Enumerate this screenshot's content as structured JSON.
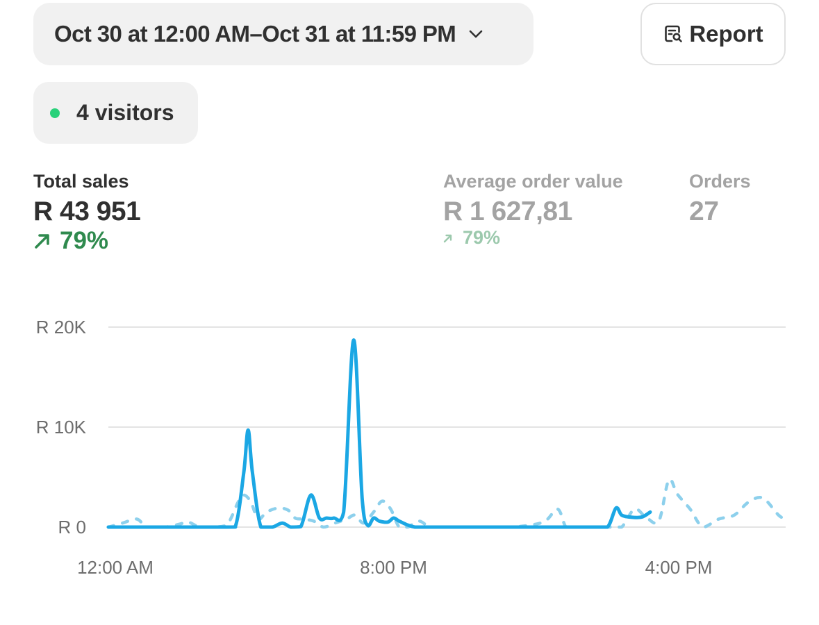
{
  "header": {
    "date_range": "Oct 30 at 12:00 AM–Oct 31 at 11:59 PM",
    "report_label": "Report"
  },
  "visitors": {
    "label": "4 visitors",
    "dot_color": "#29d17a"
  },
  "metrics": {
    "total_sales": {
      "label": "Total sales",
      "value": "R 43 951",
      "change": "79%"
    },
    "avg_order_value": {
      "label": "Average order value",
      "value": "R 1 627,81",
      "change": "79%"
    },
    "orders": {
      "label": "Orders",
      "value": "27"
    }
  },
  "colors": {
    "current_series": "#1ba7e4",
    "comparison_series": "#8dd0ec",
    "positive_change": "#2f8a4e",
    "grid": "#e3e3e3"
  },
  "chart_data": {
    "type": "line",
    "y_ticks": [
      "R 20K",
      "R 10K",
      "R 0"
    ],
    "y_tick_values": [
      20000,
      10000,
      0
    ],
    "x_ticks": [
      "12:00 AM",
      "8:00 PM",
      "4:00 PM"
    ],
    "x_tick_hours": [
      0,
      20,
      40
    ],
    "xlim_hours": [
      0,
      47.5
    ],
    "ylim": [
      0,
      20000
    ],
    "grid": true,
    "series": [
      {
        "style": "solid",
        "x": [
          0,
          8,
          8.9,
          9.5,
          9.8,
          10.1,
          10.7,
          11.5,
          12.2,
          12.8,
          13.5,
          14.2,
          14.8,
          15.3,
          15.8,
          16.5,
          17.2,
          17.8,
          18.2,
          18.6,
          19.0,
          19.6,
          20.0,
          20.4,
          21.0,
          21.5,
          22.0,
          22.6,
          23.2,
          24.0,
          26,
          30,
          34,
          35.0,
          35.6,
          36.0,
          36.6,
          37.4,
          38.0
        ],
        "y": [
          0,
          0,
          50,
          5500,
          9700,
          5500,
          0,
          0,
          400,
          0,
          50,
          3200,
          900,
          900,
          900,
          1500,
          18700,
          2800,
          150,
          900,
          600,
          500,
          900,
          600,
          200,
          0,
          0,
          0,
          0,
          0,
          0,
          0,
          0,
          0,
          1900,
          1200,
          1000,
          1000,
          1500
        ]
      },
      {
        "style": "dashed",
        "x": [
          0,
          1,
          2,
          2.6,
          3,
          4,
          5,
          5.6,
          6.4,
          7.3,
          8.3,
          9.1,
          9.5,
          10.0,
          10.5,
          11.1,
          11.9,
          12.6,
          13.1,
          13.6,
          14.4,
          15.1,
          15.9,
          16.7,
          17.3,
          17.9,
          18.6,
          19.2,
          19.8,
          20.4,
          21.0,
          21.8,
          22.6,
          24.0,
          25.5,
          27.3,
          28.4,
          30.5,
          31.5,
          32.1,
          32.8,
          33.6,
          34.5,
          35.3,
          36.0,
          36.9,
          37.7,
          38.6,
          39.3,
          39.9,
          40.8,
          41.7,
          42.8,
          43.9,
          44.9,
          45.9,
          47.0,
          47.5
        ],
        "y": [
          0,
          400,
          800,
          0,
          0,
          0,
          300,
          500,
          0,
          0,
          200,
          2500,
          3200,
          2500,
          800,
          1500,
          1900,
          1700,
          900,
          800,
          600,
          0,
          400,
          800,
          1200,
          400,
          1500,
          2600,
          1800,
          0,
          0,
          600,
          0,
          0,
          0,
          0,
          0,
          500,
          1800,
          0,
          0,
          0,
          0,
          0,
          0,
          1800,
          1000,
          600,
          4700,
          3300,
          1800,
          0,
          800,
          1200,
          2500,
          2900,
          1200,
          800
        ]
      }
    ]
  }
}
